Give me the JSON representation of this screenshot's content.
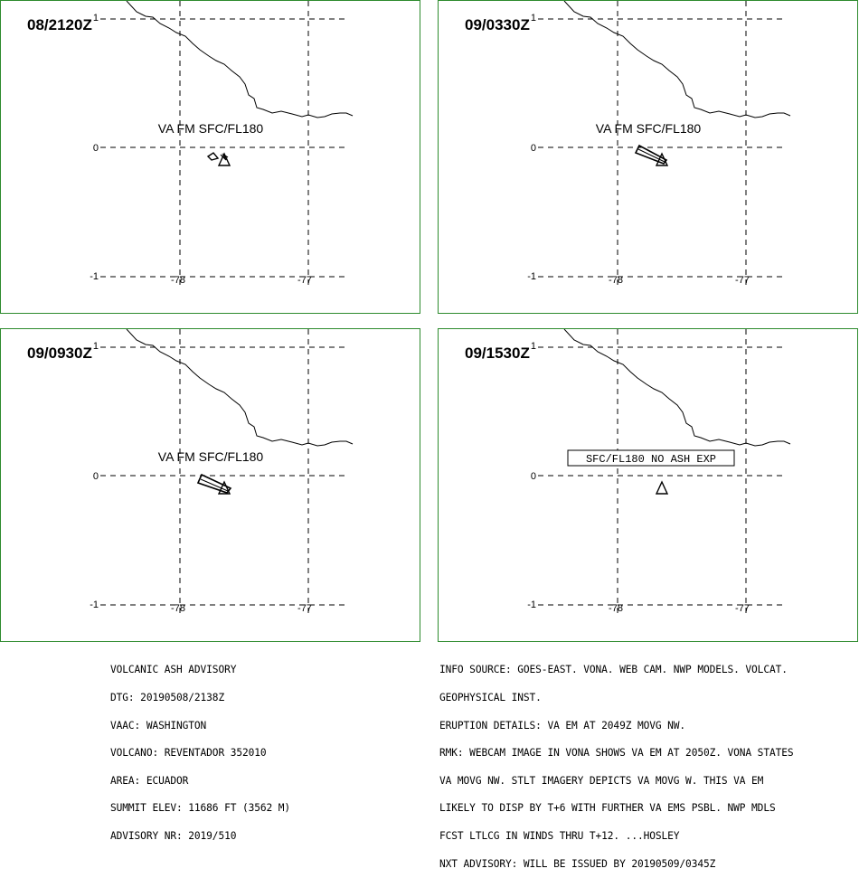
{
  "panels": [
    {
      "time": "08/2120Z",
      "label": "VA FM SFC/FL180",
      "label_box": false,
      "ash": "tiny"
    },
    {
      "time": "09/0330Z",
      "label": "VA FM SFC/FL180",
      "label_box": false,
      "ash": "plume"
    },
    {
      "time": "09/0930Z",
      "label": "VA FM SFC/FL180",
      "label_box": false,
      "ash": "plume2"
    },
    {
      "time": "09/1530Z",
      "label": "SFC/FL180 NO ASH EXP",
      "label_box": true,
      "ash": "none"
    }
  ],
  "axes": {
    "lat_labels": [
      "1",
      "0",
      "-1"
    ],
    "lon_labels": [
      "-78",
      "-77"
    ]
  },
  "advisory_left": [
    "VOLCANIC ASH ADVISORY",
    "DTG: 20190508/2138Z",
    "VAAC: WASHINGTON",
    "VOLCANO: REVENTADOR 352010",
    "AREA: ECUADOR",
    "SUMMIT ELEV: 11686 FT (3562 M)",
    "ADVISORY NR: 2019/510"
  ],
  "advisory_right": [
    "INFO SOURCE: GOES-EAST. VONA. WEB CAM. NWP MODELS. VOLCAT.",
    "GEOPHYSICAL INST.",
    "ERUPTION DETAILS: VA EM AT 2049Z MOVG NW.",
    "RMK: WEBCAM IMAGE IN VONA SHOWS VA EM AT 2050Z. VONA STATES",
    "VA MOVG NW. STLT IMAGERY DEPICTS VA MOVG W. THIS VA EM",
    "LIKELY TO DISP BY T+6 WITH FURTHER VA EMS PSBL. NWP MDLS",
    "FCST LTLCG IN WINDS THRU T+12. ...HOSLEY",
    "NXT ADVISORY: WILL BE ISSUED BY 20190509/0345Z"
  ],
  "icons": {
    "volcano": "volcano-triangle-icon"
  }
}
